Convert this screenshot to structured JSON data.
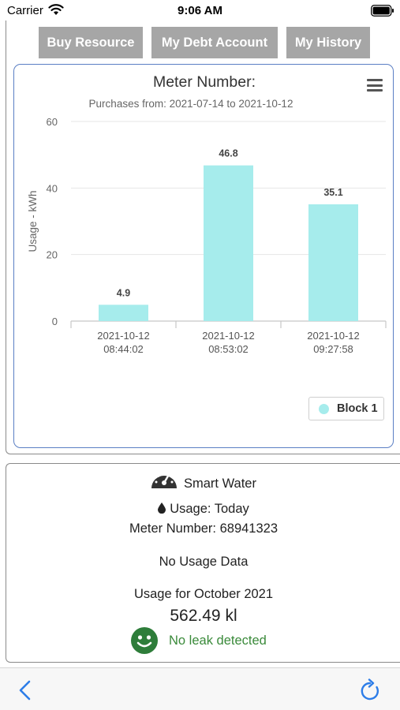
{
  "status_bar": {
    "carrier": "Carrier",
    "time": "9:06 AM"
  },
  "actions": {
    "buy_resource": "Buy Resource",
    "debt_account": "My Debt Account",
    "history": "My History"
  },
  "colors": {
    "button_bg": "#a6a6a6",
    "bar_fill": "#a6ecec",
    "panel_border": "#5b7fc4",
    "leak_ok": "#3a8a3a",
    "smiley": "#2e7d3a",
    "toolbar_icon": "#2d7de8"
  },
  "chart_data": {
    "type": "bar",
    "title": "Meter Number:",
    "subtitle": "Purchases from: 2021-07-14 to 2021-10-12",
    "ylabel": "Usage - kWh",
    "xlabel": "",
    "ylim": [
      0,
      60
    ],
    "yticks": [
      "0",
      "20",
      "40",
      "60"
    ],
    "categories": [
      [
        "2021-10-12",
        "08:44:02"
      ],
      [
        "2021-10-12",
        "08:53:02"
      ],
      [
        "2021-10-12",
        "09:27:58"
      ]
    ],
    "series": [
      {
        "name": "Block 1",
        "values": [
          4.9,
          46.8,
          35.1
        ]
      }
    ],
    "data_labels": [
      "4.9",
      "46.8",
      "35.1"
    ],
    "grid": true,
    "legend_position": "bottom-right"
  },
  "water": {
    "title": "Smart Water",
    "usage_label": "Usage: Today",
    "meter_number": "Meter Number: 68941323",
    "no_data": "No Usage Data",
    "month_label": "Usage for October 2021",
    "month_value": "562.49 kl",
    "leak_status": "No leak detected"
  },
  "icons": {
    "wifi": "wifi-icon",
    "battery": "battery-icon",
    "menu": "hamburger-menu-icon",
    "gauge": "gauge-icon",
    "drop": "water-drop-icon",
    "smiley": "smiley-icon",
    "back": "chevron-left-icon",
    "refresh": "refresh-icon"
  }
}
